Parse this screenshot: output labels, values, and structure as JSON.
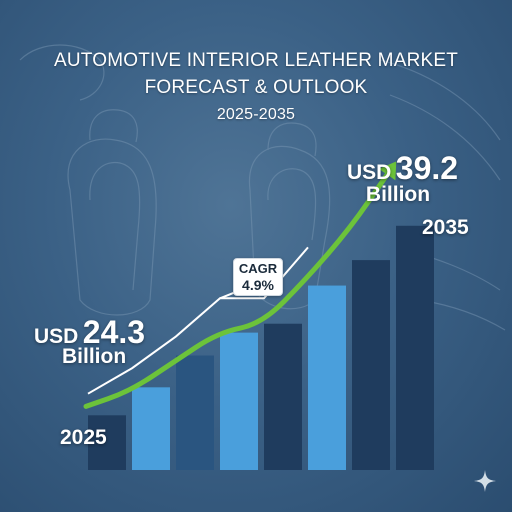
{
  "title": {
    "line1": "AUTOMOTIVE INTERIOR LEATHER MARKET",
    "line2": "FORECAST & OUTLOOK",
    "years": "2025-2035"
  },
  "start": {
    "currency": "USD",
    "value": "24.3",
    "unit": "Billion",
    "year": "2025"
  },
  "end": {
    "currency": "USD",
    "value": "39.2",
    "unit": "Billion",
    "year": "2035"
  },
  "cagr": {
    "label": "CAGR",
    "value": "4.9%"
  },
  "colors": {
    "background": "#3b6186",
    "bar_light": "#4a9fdc",
    "bar_dark": "#1f3c5e",
    "growth_arrow": "#6cc33a",
    "trend_line": "#ffffff"
  },
  "icons": [
    "sparkle-icon"
  ],
  "chart_data": {
    "type": "bar",
    "categories": [
      "2025",
      "",
      "",
      "",
      "",
      "",
      "",
      "2035"
    ],
    "values": [
      24.3,
      26.5,
      29.0,
      30.8,
      31.5,
      34.5,
      36.5,
      39.2
    ],
    "bar_colors": [
      "#1f3c5e",
      "#4a9fdc",
      "#2a5580",
      "#4a9fdc",
      "#1f3c5e",
      "#4a9fdc",
      "#1f3c5e",
      "#1f3c5e"
    ],
    "growth_arrow": [
      25.0,
      26.2,
      28.5,
      30.8,
      31.5,
      35.0,
      39.0,
      44.0
    ],
    "trend_line": [
      26.0,
      28.0,
      30.5,
      33.5,
      33.5,
      37.5
    ],
    "ylim": [
      20,
      45
    ],
    "grid": false,
    "legend": "none",
    "title": "AUTOMOTIVE INTERIOR LEATHER MARKET FORECAST & OUTLOOK",
    "subtitle": "2025-2035",
    "xlabel": "",
    "ylabel": "",
    "annotations": [
      "USD 24.3 Billion",
      "USD 39.2 Billion",
      "CAGR 4.9%"
    ]
  }
}
